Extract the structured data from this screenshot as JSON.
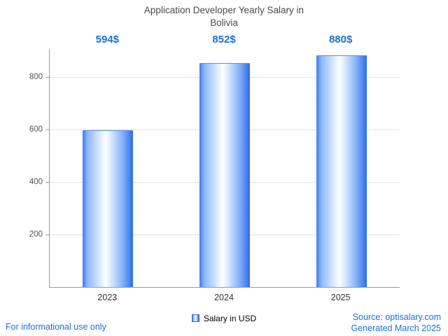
{
  "chart_data": {
    "type": "bar",
    "title": "Application Developer Yearly Salary in Bolivia",
    "categories": [
      "2023",
      "2024",
      "2025"
    ],
    "series": [
      {
        "name": "Salary in USD",
        "values": [
          594,
          852,
          880
        ]
      }
    ],
    "value_labels": [
      "594$",
      "852$",
      "880$"
    ],
    "xlabel": "",
    "ylabel": "",
    "ylim": [
      0,
      907
    ],
    "yticks": [
      200,
      400,
      600,
      800
    ],
    "grid": true,
    "legend_position": "bottom"
  },
  "legend": {
    "label": "Salary in USD"
  },
  "footer": {
    "left_note": "For informational use only",
    "source": "Source: optisalary.com",
    "generated": "Generated March 2025"
  },
  "colors": {
    "accent_text": "#1a6fdf",
    "bar_edge": "#2b6ee8",
    "grid": "#e3e3e3",
    "axis": "#9a9a9a",
    "title_text": "#4a4a4a"
  }
}
